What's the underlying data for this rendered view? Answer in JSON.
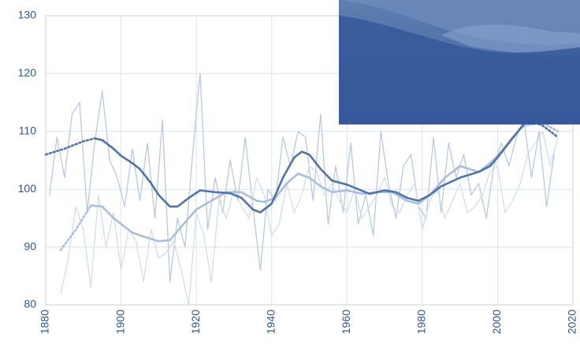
{
  "chart_data": {
    "type": "line",
    "xlim": [
      1880,
      2020
    ],
    "xticks": [
      1880,
      1900,
      1920,
      1940,
      1960,
      1980,
      2000,
      2020
    ],
    "ylim": [
      80,
      130
    ],
    "yticks": [
      80,
      90,
      100,
      110,
      120,
      130
    ],
    "grid": true,
    "series": [
      {
        "color": "#b9c9df",
        "width": 1.3,
        "dash": "none",
        "x": [
          1881,
          1883,
          1885,
          1887,
          1889,
          1891,
          1893,
          1895,
          1897,
          1899,
          1901,
          1903,
          1905,
          1907,
          1909,
          1911,
          1913,
          1915,
          1917,
          1919,
          1921,
          1923,
          1925,
          1927,
          1929,
          1931,
          1933,
          1935,
          1937,
          1939,
          1941,
          1943,
          1945,
          1947,
          1949,
          1951,
          1953,
          1955,
          1957,
          1959,
          1961,
          1963,
          1965,
          1967,
          1969,
          1971,
          1973,
          1975,
          1977,
          1979,
          1981,
          1983,
          1985,
          1987,
          1989,
          1991,
          1993,
          1995,
          1997,
          1999,
          2001,
          2003,
          2005,
          2007,
          2009,
          2011,
          2013,
          2015
        ],
        "values": [
          99,
          109,
          102,
          113,
          115,
          96,
          108,
          117,
          105,
          102,
          97,
          107,
          98,
          108,
          95,
          112,
          84,
          95,
          90,
          106,
          120,
          93,
          102,
          96,
          105,
          98,
          109,
          97,
          86,
          100,
          98,
          109,
          104,
          110,
          109,
          98,
          113,
          94,
          104,
          96,
          108,
          94,
          99,
          92,
          110,
          101,
          95,
          104,
          106,
          97,
          95,
          109,
          96,
          108,
          102,
          106,
          99,
          101,
          95,
          104,
          108,
          104,
          109,
          112,
          102,
          110,
          97,
          106
        ]
      },
      {
        "color": "#d3deec",
        "width": 1.3,
        "dash": "none",
        "x": [
          1884,
          1886,
          1888,
          1890,
          1892,
          1894,
          1896,
          1898,
          1900,
          1902,
          1904,
          1906,
          1908,
          1910,
          1912,
          1914,
          1916,
          1918,
          1920,
          1922,
          1924,
          1926,
          1928,
          1930,
          1932,
          1934,
          1936,
          1938,
          1940,
          1942,
          1944,
          1946,
          1948,
          1950,
          1952,
          1954,
          1956,
          1958,
          1960,
          1962,
          1964,
          1966,
          1968,
          1970,
          1972,
          1974,
          1976,
          1978,
          1980,
          1982,
          1984,
          1986,
          1988,
          1990,
          1992,
          1994,
          1996,
          1998,
          2000,
          2002,
          2004,
          2006,
          2008,
          2010,
          2012,
          2014,
          2016
        ],
        "values": [
          82,
          88,
          97,
          93,
          83,
          99,
          90,
          96,
          86,
          93,
          91,
          84,
          93,
          88,
          89,
          91,
          86,
          80,
          96,
          92,
          84,
          98,
          95,
          100,
          97,
          95,
          102,
          99,
          92,
          94,
          101,
          96,
          99,
          104,
          103,
          99,
          101,
          98,
          96,
          100,
          95,
          97,
          99,
          102,
          97,
          96,
          99,
          101,
          93,
          98,
          100,
          95,
          98,
          101,
          96,
          97,
          99,
          103,
          104,
          96,
          98,
          101,
          106,
          108,
          110,
          104,
          109
        ]
      },
      {
        "color": "#a9bedb",
        "width": 2.6,
        "dash": "2 3",
        "x": [
          1884,
          1888,
          1892
        ],
        "values": [
          89.5,
          93,
          97.2
        ]
      },
      {
        "color": "#a9bedb",
        "width": 2.6,
        "dash": "none",
        "x": [
          1892,
          1895,
          1898,
          1900,
          1903,
          1906,
          1910,
          1913,
          1916,
          1920,
          1924,
          1928,
          1932,
          1936,
          1938,
          1941,
          1944,
          1947,
          1950,
          1953,
          1956,
          1960,
          1964,
          1968,
          1972,
          1976,
          1979,
          1982,
          1986,
          1990,
          1995,
          1998,
          2001,
          2004,
          2007
        ],
        "values": [
          97.2,
          97,
          95,
          94,
          92.5,
          91.8,
          91,
          91.2,
          93.5,
          96.5,
          98,
          99.5,
          99.5,
          98,
          97.8,
          98.5,
          101,
          102.7,
          102,
          100.5,
          99.5,
          99.8,
          99.2,
          99.5,
          99.5,
          98,
          97.5,
          99,
          102,
          104,
          103,
          104.5,
          106.5,
          109,
          111
        ]
      },
      {
        "color": "#a9bedb",
        "width": 2.6,
        "dash": "2 3",
        "x": [
          2007,
          2012,
          2016
        ],
        "values": [
          111,
          111.5,
          110
        ]
      },
      {
        "color": "#4f74a8",
        "width": 2.6,
        "dash": "2 3",
        "x": [
          1880,
          1885,
          1890,
          1893
        ],
        "values": [
          106,
          107,
          108.3,
          108.8
        ]
      },
      {
        "color": "#4f74a8",
        "width": 2.6,
        "dash": "none",
        "x": [
          1893,
          1895,
          1898,
          1900,
          1903,
          1905,
          1908,
          1910,
          1913,
          1915,
          1918,
          1921,
          1925,
          1929,
          1932,
          1935,
          1937,
          1940,
          1943,
          1946,
          1948,
          1950,
          1953,
          1956,
          1960,
          1963,
          1966,
          1970,
          1973,
          1976,
          1979,
          1982,
          1985,
          1990,
          1995,
          1998,
          2000,
          2003,
          2006,
          2008
        ],
        "values": [
          108.8,
          108.5,
          107,
          105.8,
          104.5,
          103.5,
          101,
          99,
          97,
          97,
          98.5,
          99.8,
          99.5,
          99.3,
          98.5,
          96.5,
          96,
          97.5,
          102,
          105.5,
          106.5,
          106,
          103.5,
          101.5,
          100.8,
          100,
          99.2,
          99.8,
          99.5,
          98.5,
          98,
          99,
          100.5,
          102,
          103,
          104,
          105.5,
          108,
          110.5,
          112
        ]
      },
      {
        "color": "#4f74a8",
        "width": 2.6,
        "dash": "2 3",
        "x": [
          2008,
          2012,
          2016
        ],
        "values": [
          112,
          111,
          109
        ]
      }
    ]
  }
}
